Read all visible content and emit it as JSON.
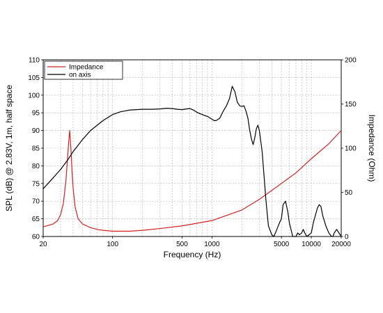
{
  "chart_data": {
    "type": "line",
    "xlabel": "Frequency (Hz)",
    "ylabel_left": "SPL (dB) @ 2.83V, 1m, half space",
    "ylabel_right": "Impedance (Ohm)",
    "x_scale": "log",
    "xlim": [
      20,
      20000
    ],
    "ylim_left": [
      60,
      110
    ],
    "ylim_right": [
      0,
      200
    ],
    "x_ticks": [
      20,
      100,
      500,
      1000,
      5000,
      10000,
      20000
    ],
    "x_tick_labels": [
      "20",
      "100",
      "500",
      "1000",
      "5000",
      "10000",
      "20000"
    ],
    "y_ticks_left": [
      60,
      65,
      70,
      75,
      80,
      85,
      90,
      95,
      100,
      105,
      110
    ],
    "y_tick_labels_left": [
      "60",
      "65",
      "70",
      "75",
      "80",
      "85",
      "90",
      "95",
      "100",
      "105",
      "110"
    ],
    "y_ticks_right": [
      0,
      50,
      100,
      150,
      200
    ],
    "y_tick_labels_right": [
      "0",
      "50",
      "100",
      "150",
      "200"
    ],
    "grid": true,
    "legend_position": "top-left",
    "legend": [
      "Impedance",
      "on axis"
    ],
    "colors": {
      "impedance": "#d42020",
      "on_axis": "#000000",
      "grid": "#b0b0b0"
    },
    "series": [
      {
        "name": "Impedance",
        "axis": "right",
        "x": [
          20,
          25,
          28,
          30,
          32,
          34,
          35,
          36,
          37,
          38,
          39,
          40,
          42,
          45,
          50,
          60,
          70,
          80,
          100,
          150,
          200,
          300,
          500,
          1000,
          2000,
          3000,
          5000,
          7000,
          10000,
          15000,
          20000
        ],
        "y": [
          11,
          14,
          18,
          25,
          38,
          65,
          85,
          105,
          120,
          100,
          75,
          55,
          33,
          20,
          14,
          10,
          8,
          7,
          6,
          6,
          7,
          9,
          12,
          18,
          30,
          42,
          60,
          72,
          88,
          105,
          120
        ]
      },
      {
        "name": "on axis",
        "axis": "left",
        "x": [
          20,
          25,
          30,
          35,
          40,
          50,
          60,
          80,
          100,
          120,
          150,
          200,
          250,
          300,
          350,
          400,
          450,
          500,
          550,
          600,
          650,
          700,
          750,
          800,
          850,
          900,
          1000,
          1050,
          1100,
          1200,
          1300,
          1400,
          1500,
          1600,
          1700,
          1800,
          1900,
          2000,
          2100,
          2200,
          2300,
          2400,
          2500,
          2600,
          2700,
          2800,
          2900,
          3000,
          3200,
          3500,
          3700,
          4000,
          4200,
          4500,
          4800,
          5000,
          5200,
          5500,
          5800,
          6000,
          6500,
          7000,
          7300,
          7600,
          8000,
          8300,
          8600,
          9000,
          9500,
          10000,
          10500,
          11000,
          11500,
          12000,
          12500,
          13000,
          13500,
          14000,
          14500,
          15000,
          15500,
          16000,
          16500,
          17000,
          18000,
          20000
        ],
        "y": [
          73.5,
          76.5,
          79,
          81.5,
          84,
          87.5,
          90,
          92.8,
          94.5,
          95.3,
          95.8,
          96,
          96,
          96.1,
          96.3,
          96.2,
          96,
          95.9,
          96.1,
          96.2,
          95.8,
          95.2,
          94.8,
          94.5,
          94.2,
          94,
          93.2,
          92.8,
          92.8,
          93.5,
          95.5,
          97,
          99,
          102.5,
          101,
          98,
          97,
          96.8,
          97,
          95.5,
          93.5,
          90,
          87.5,
          86,
          88,
          90.5,
          91.5,
          90,
          84,
          70,
          63,
          60.5,
          60,
          62,
          64,
          65,
          69,
          70,
          67,
          64,
          60,
          60,
          61,
          60.5,
          61,
          62,
          61,
          60,
          60.5,
          61,
          64,
          66,
          68,
          69,
          68.5,
          66,
          64.5,
          63,
          62,
          61,
          60.5,
          60,
          60,
          61,
          62,
          60
        ]
      }
    ]
  }
}
